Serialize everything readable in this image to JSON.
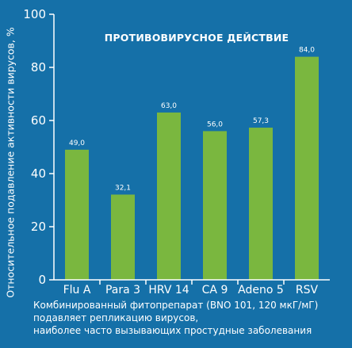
{
  "chart_data": {
    "type": "bar",
    "title": "ПРОТИВОВИРУСНОЕ ДЕЙСТВИЕ",
    "ylabel": "Относительное подавление активности вирусов, %",
    "xlabel": "",
    "categories": [
      "Flu A",
      "Para 3",
      "HRV 14",
      "CA 9",
      "Adeno 5",
      "RSV"
    ],
    "values": [
      49.0,
      32.1,
      63.0,
      56.0,
      57.3,
      84.0
    ],
    "value_labels": [
      "49,0",
      "32,1",
      "63,0",
      "56,0",
      "57,3",
      "84,0"
    ],
    "ylim": [
      0,
      100
    ],
    "yticks": [
      0,
      20,
      40,
      60,
      80,
      100
    ],
    "ytick_labels": [
      "0",
      "20",
      "40",
      "60",
      "80",
      "100"
    ],
    "grid": false,
    "bar_color": "#7ab73f",
    "background_color": "#1570a8"
  },
  "caption": {
    "lines": [
      "Комбинированный фитопрепарат (BNO 101, 120 мкГ/мГ)",
      "подавляет репликацию вирусов,",
      "наиболее часто вызывающих простудные заболевания"
    ]
  }
}
